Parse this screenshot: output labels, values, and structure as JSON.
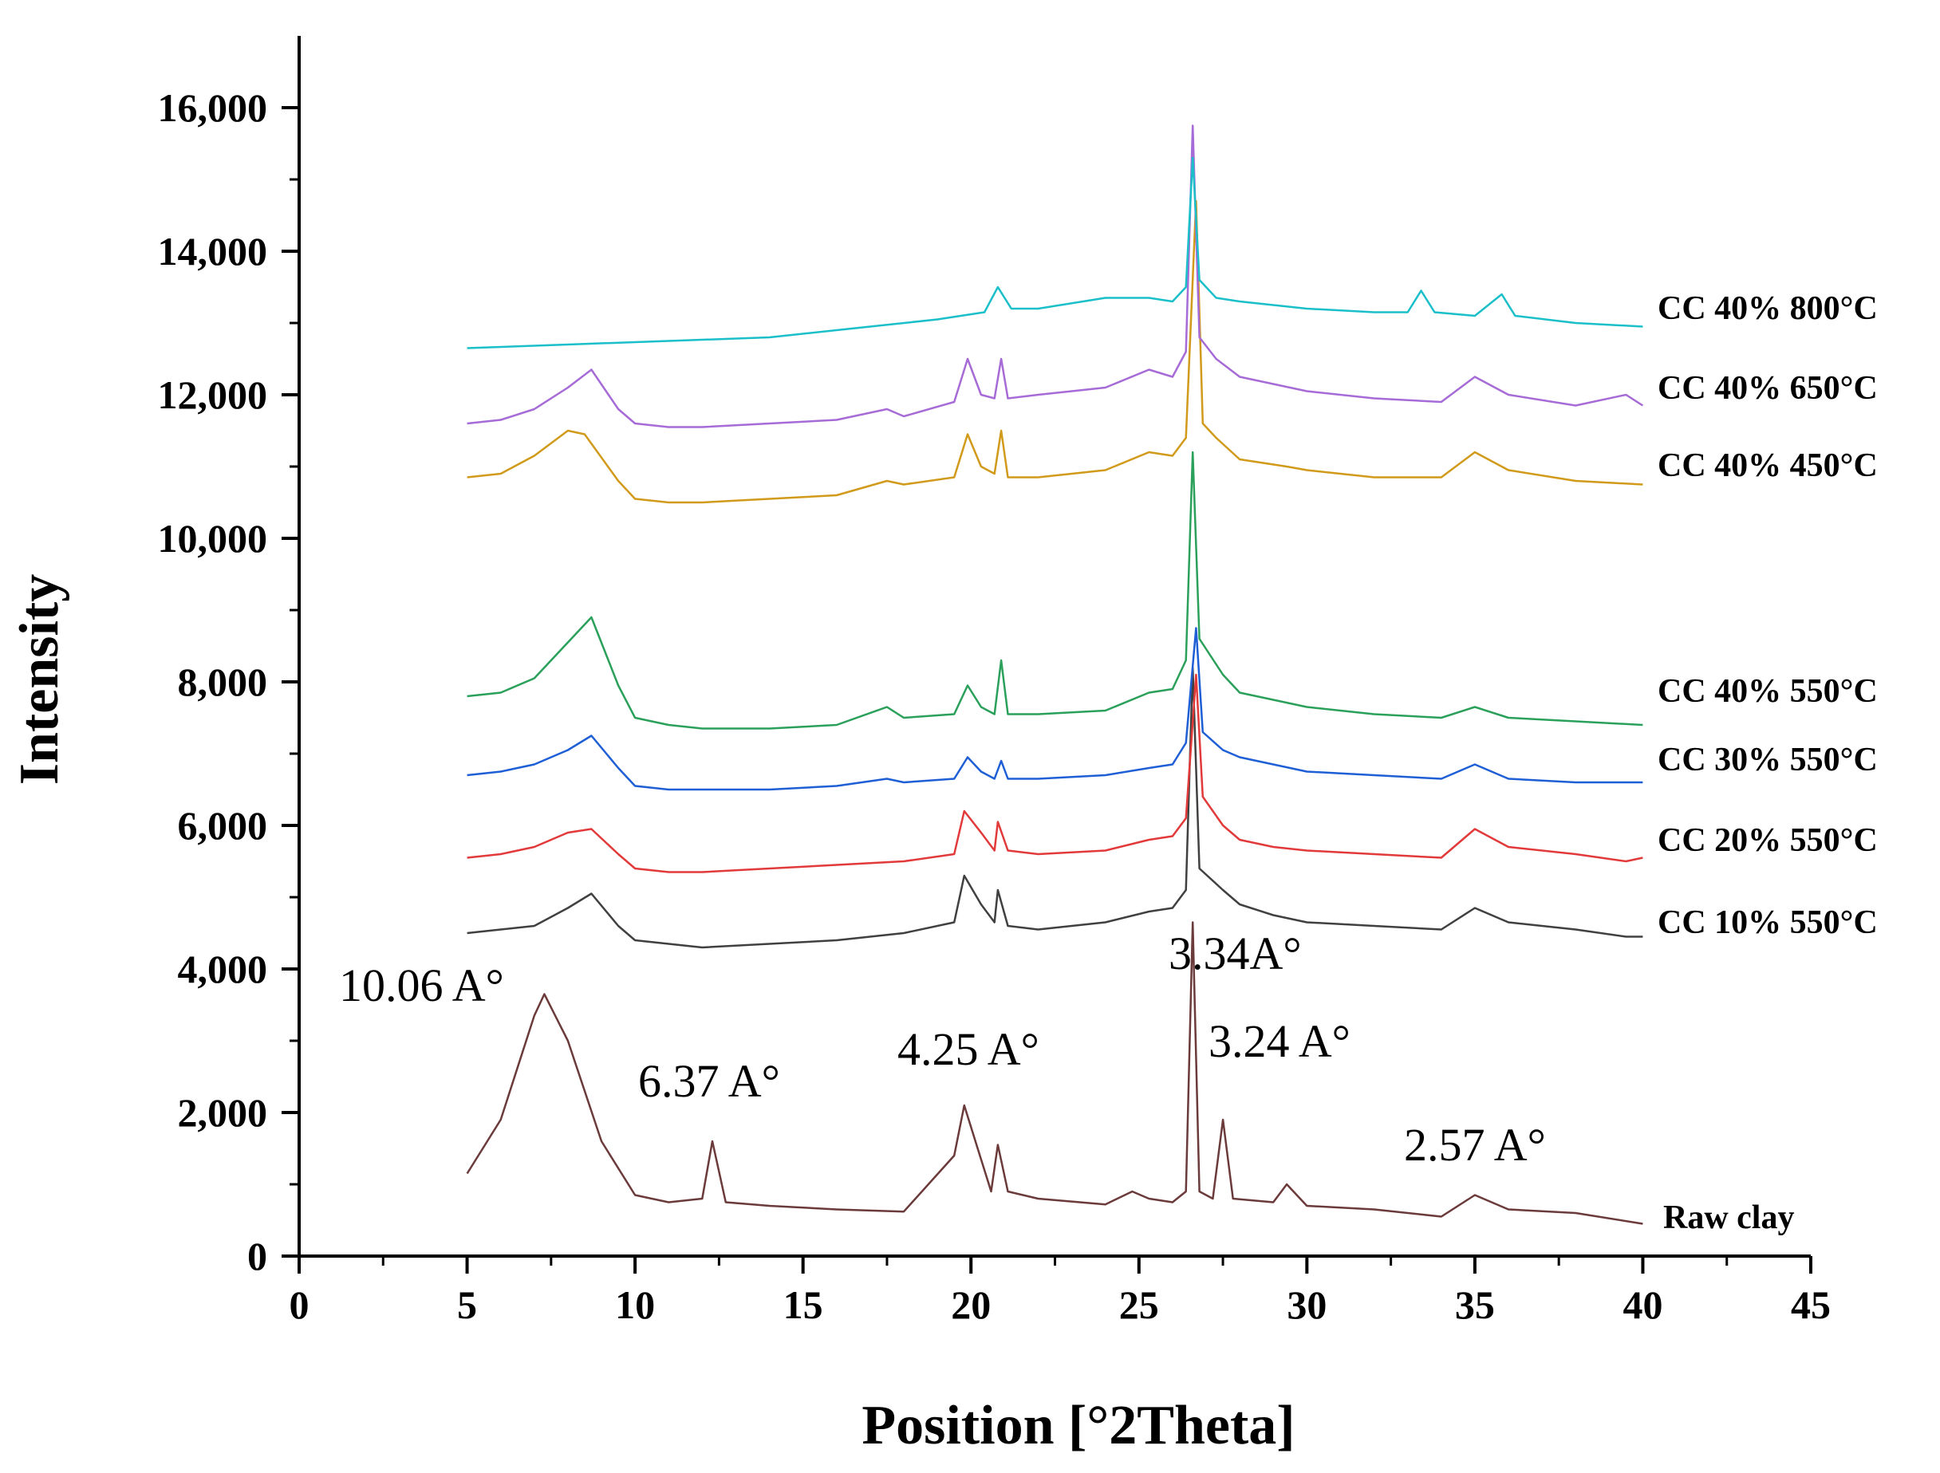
{
  "chart_data": {
    "type": "line",
    "title": "",
    "xlabel": "Position [°2Theta]",
    "ylabel": "Intensity",
    "xlim": [
      0,
      45
    ],
    "ylim": [
      0,
      17000
    ],
    "xticks": [
      0,
      5,
      10,
      15,
      20,
      25,
      30,
      35,
      40,
      45
    ],
    "xtick_labels": [
      "0",
      "5",
      "10",
      "15",
      "20",
      "25",
      "30",
      "35",
      "40",
      "45"
    ],
    "yticks": [
      0,
      2000,
      4000,
      6000,
      8000,
      10000,
      12000,
      14000,
      16000
    ],
    "ytick_labels": [
      "0",
      "2,000",
      "4,000",
      "6,000",
      "8,000",
      "10,000",
      "12,000",
      "14,000",
      "16,000"
    ],
    "grid": false,
    "series": [
      {
        "name": "Raw clay",
        "color": "#6b3a3a",
        "x": [
          5,
          6,
          7,
          7.3,
          8,
          9,
          10,
          11,
          12,
          12.3,
          12.7,
          14,
          16,
          18,
          19.5,
          19.8,
          20.2,
          20.6,
          20.8,
          21.1,
          22,
          24,
          24.8,
          25.3,
          26,
          26.4,
          26.6,
          26.8,
          27.2,
          27.5,
          27.8,
          29,
          29.4,
          30,
          32,
          34,
          35,
          36,
          38,
          40
        ],
        "values": [
          1150,
          1900,
          3350,
          3650,
          3000,
          1600,
          850,
          750,
          800,
          1600,
          750,
          700,
          650,
          620,
          1400,
          2100,
          1500,
          900,
          1550,
          900,
          800,
          720,
          900,
          800,
          750,
          900,
          4650,
          900,
          800,
          1900,
          800,
          750,
          1000,
          700,
          650,
          550,
          850,
          650,
          600,
          450
        ]
      },
      {
        "name": "CC 10% 550°C",
        "color": "#404040",
        "x": [
          5,
          6,
          7,
          8,
          8.7,
          9.5,
          10,
          11,
          12,
          14,
          16,
          18,
          19.5,
          19.8,
          20.3,
          20.7,
          20.8,
          21.1,
          22,
          24,
          25.3,
          26,
          26.4,
          26.6,
          26.8,
          27.5,
          28,
          29,
          30,
          32,
          34,
          35,
          36,
          38,
          39.5,
          40
        ],
        "values": [
          4500,
          4550,
          4600,
          4850,
          5050,
          4600,
          4400,
          4350,
          4300,
          4350,
          4400,
          4500,
          4650,
          5300,
          4900,
          4650,
          5100,
          4600,
          4550,
          4650,
          4800,
          4850,
          5100,
          8200,
          5400,
          5100,
          4900,
          4750,
          4650,
          4600,
          4550,
          4850,
          4650,
          4550,
          4450,
          4450
        ]
      },
      {
        "name": "CC 20% 550°C",
        "color": "#e23a3a",
        "x": [
          5,
          6,
          7,
          8,
          8.7,
          9.5,
          10,
          11,
          12,
          14,
          16,
          18,
          19.5,
          19.8,
          20.3,
          20.7,
          20.8,
          21.1,
          22,
          24,
          25.3,
          26,
          26.4,
          26.7,
          26.9,
          27.5,
          28,
          29,
          30,
          32,
          34,
          35,
          36,
          38,
          39.5,
          40
        ],
        "values": [
          5550,
          5600,
          5700,
          5900,
          5950,
          5600,
          5400,
          5350,
          5350,
          5400,
          5450,
          5500,
          5600,
          6200,
          5900,
          5650,
          6050,
          5650,
          5600,
          5650,
          5800,
          5850,
          6100,
          8100,
          6400,
          6000,
          5800,
          5700,
          5650,
          5600,
          5550,
          5950,
          5700,
          5600,
          5500,
          5550
        ]
      },
      {
        "name": "CC 30% 550°C",
        "color": "#1f5fd6",
        "x": [
          5,
          6,
          7,
          8,
          8.7,
          9.5,
          10,
          11,
          12,
          14,
          16,
          17.5,
          18,
          19.5,
          19.9,
          20.3,
          20.7,
          20.9,
          21.1,
          22,
          24,
          25.3,
          26,
          26.4,
          26.7,
          26.9,
          27.5,
          28,
          29,
          30,
          32,
          34,
          35,
          36,
          38,
          40
        ],
        "values": [
          6700,
          6750,
          6850,
          7050,
          7250,
          6800,
          6550,
          6500,
          6500,
          6500,
          6550,
          6650,
          6600,
          6650,
          6950,
          6750,
          6650,
          6900,
          6650,
          6650,
          6700,
          6800,
          6850,
          7150,
          8750,
          7300,
          7050,
          6950,
          6850,
          6750,
          6700,
          6650,
          6850,
          6650,
          6600,
          6600
        ]
      },
      {
        "name": "CC 40% 550°C",
        "color": "#2aa05a",
        "x": [
          5,
          6,
          7,
          8,
          8.7,
          9.5,
          10,
          11,
          12,
          14,
          16,
          17.5,
          18,
          19.5,
          19.9,
          20.3,
          20.7,
          20.9,
          21.1,
          22,
          24,
          25.3,
          26,
          26.4,
          26.6,
          26.8,
          27.5,
          28,
          29,
          30,
          32,
          34,
          35,
          36,
          38,
          40
        ],
        "values": [
          7800,
          7850,
          8050,
          8550,
          8900,
          7950,
          7500,
          7400,
          7350,
          7350,
          7400,
          7650,
          7500,
          7550,
          7950,
          7650,
          7550,
          8300,
          7550,
          7550,
          7600,
          7850,
          7900,
          8300,
          11200,
          8600,
          8100,
          7850,
          7750,
          7650,
          7550,
          7500,
          7650,
          7500,
          7450,
          7400
        ]
      },
      {
        "name": "CC 40% 450°C",
        "color": "#d19a1a",
        "x": [
          5,
          6,
          7,
          8,
          8.5,
          9.5,
          10,
          11,
          12,
          14,
          16,
          17.5,
          18,
          19.5,
          19.9,
          20.3,
          20.7,
          20.9,
          21.1,
          22,
          24,
          25.3,
          26,
          26.4,
          26.7,
          26.9,
          27.3,
          28,
          29.4,
          30,
          32,
          34,
          35,
          36,
          38,
          40
        ],
        "values": [
          10850,
          10900,
          11150,
          11500,
          11450,
          10800,
          10550,
          10500,
          10500,
          10550,
          10600,
          10800,
          10750,
          10850,
          11450,
          11000,
          10900,
          11500,
          10850,
          10850,
          10950,
          11200,
          11150,
          11400,
          14700,
          11600,
          11400,
          11100,
          11000,
          10950,
          10850,
          10850,
          11200,
          10950,
          10800,
          10750
        ]
      },
      {
        "name": "CC 40% 650°C",
        "color": "#a66bd6",
        "x": [
          5,
          6,
          7,
          8,
          8.7,
          9.5,
          10,
          11,
          12,
          14,
          16,
          17.5,
          18,
          19.5,
          19.9,
          20.3,
          20.7,
          20.9,
          21.1,
          22,
          24,
          25.3,
          26,
          26.4,
          26.6,
          26.8,
          27.3,
          28,
          29,
          30,
          32,
          34,
          35,
          36,
          38,
          39.5,
          40
        ],
        "values": [
          11600,
          11650,
          11800,
          12100,
          12350,
          11800,
          11600,
          11550,
          11550,
          11600,
          11650,
          11800,
          11700,
          11900,
          12500,
          12000,
          11950,
          12500,
          11950,
          12000,
          12100,
          12350,
          12250,
          12600,
          15750,
          12800,
          12500,
          12250,
          12150,
          12050,
          11950,
          11900,
          12250,
          12000,
          11850,
          12000,
          11850
        ]
      },
      {
        "name": "CC 40% 800°C",
        "color": "#1bbfc9",
        "x": [
          5,
          8,
          11,
          14,
          17,
          19,
          20.4,
          20.8,
          21.2,
          22,
          24,
          25.3,
          26,
          26.4,
          26.6,
          26.8,
          27.3,
          28,
          30,
          32,
          33,
          33.4,
          33.8,
          35,
          35.8,
          36.2,
          38,
          40
        ],
        "values": [
          12650,
          12700,
          12750,
          12800,
          12950,
          13050,
          13150,
          13500,
          13200,
          13200,
          13350,
          13350,
          13300,
          13500,
          15300,
          13600,
          13350,
          13300,
          13200,
          13150,
          13150,
          13450,
          13150,
          13100,
          13400,
          13100,
          13000,
          12950
        ]
      }
    ],
    "legend": {
      "placement": "right, next to each curve end"
    },
    "annotations": [
      "10.06 A°",
      "6.37 A°",
      "4.25 A°",
      "3.34A°",
      "3.24 A°",
      "2.57 A°"
    ]
  }
}
